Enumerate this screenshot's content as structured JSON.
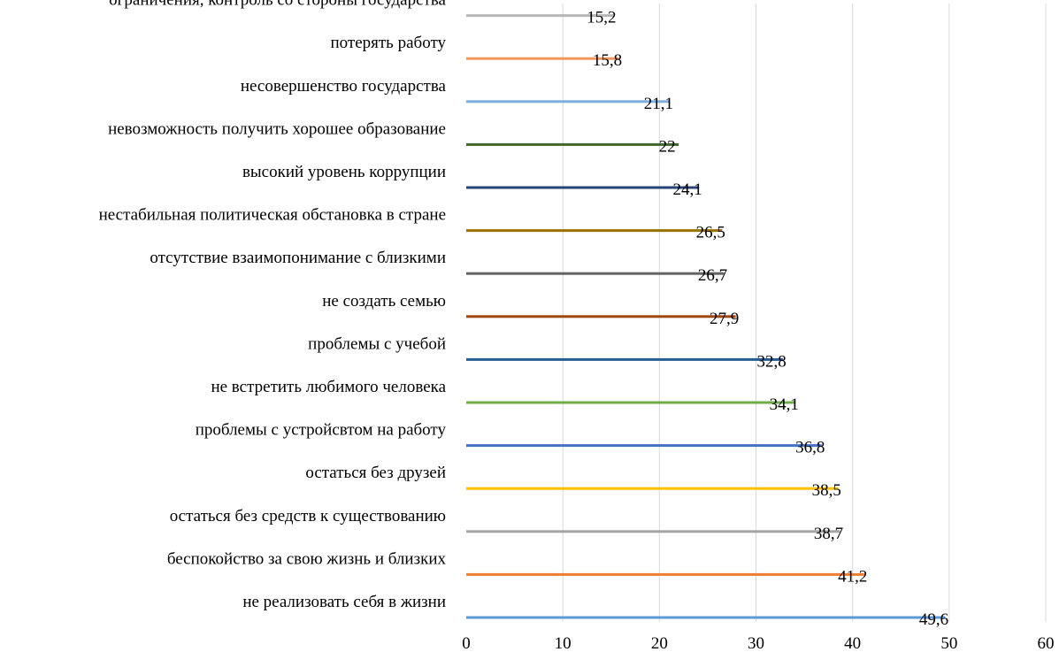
{
  "chart_data": {
    "type": "bar",
    "orientation": "horizontal",
    "title": "",
    "xlabel": "",
    "ylabel": "",
    "xlim": [
      0,
      60
    ],
    "xticks": [
      0,
      10,
      20,
      30,
      40,
      50,
      60
    ],
    "grid": "vertical",
    "categories": [
      "не реализовать себя в жизни",
      "беспокойство за свою жизнь и близких",
      "остаться без средств к существованию",
      "остаться без друзей",
      "проблемы с устройсвтом на работу",
      "не встретить любимого человека",
      "проблемы с учебой",
      "не создать семью",
      "отсутствие взаимопонимание с близкими",
      "нестабильная политическая обстановка в стране",
      "высокий уровень коррупции",
      "невозможность получить хорошее образование",
      "несовершенство государства",
      "потерять работу",
      "ограничения, контроль со стороны государства"
    ],
    "values": [
      49.6,
      41.2,
      38.7,
      38.5,
      36.8,
      34.1,
      32.8,
      27.9,
      26.7,
      26.5,
      24.1,
      22,
      21.1,
      15.8,
      15.2
    ],
    "value_labels": [
      "49,6",
      "41,2",
      "38,7",
      "38,5",
      "36,8",
      "34,1",
      "32,8",
      "27,9",
      "26,7",
      "26,5",
      "24,1",
      "22",
      "21,1",
      "15,8",
      "15,2"
    ],
    "tick_labels": [
      "0",
      "10",
      "20",
      "30",
      "40",
      "50",
      "60"
    ],
    "colors": [
      "#5B9BD5",
      "#ED7D31",
      "#A5A5A5",
      "#FFC000",
      "#4472C4",
      "#70AD47",
      "#255E91",
      "#9E480E",
      "#636363",
      "#997300",
      "#264478",
      "#43682B",
      "#7CAFDD",
      "#F1975A",
      "#B7B7B7"
    ],
    "gridline_color": "#d9d9d9"
  }
}
